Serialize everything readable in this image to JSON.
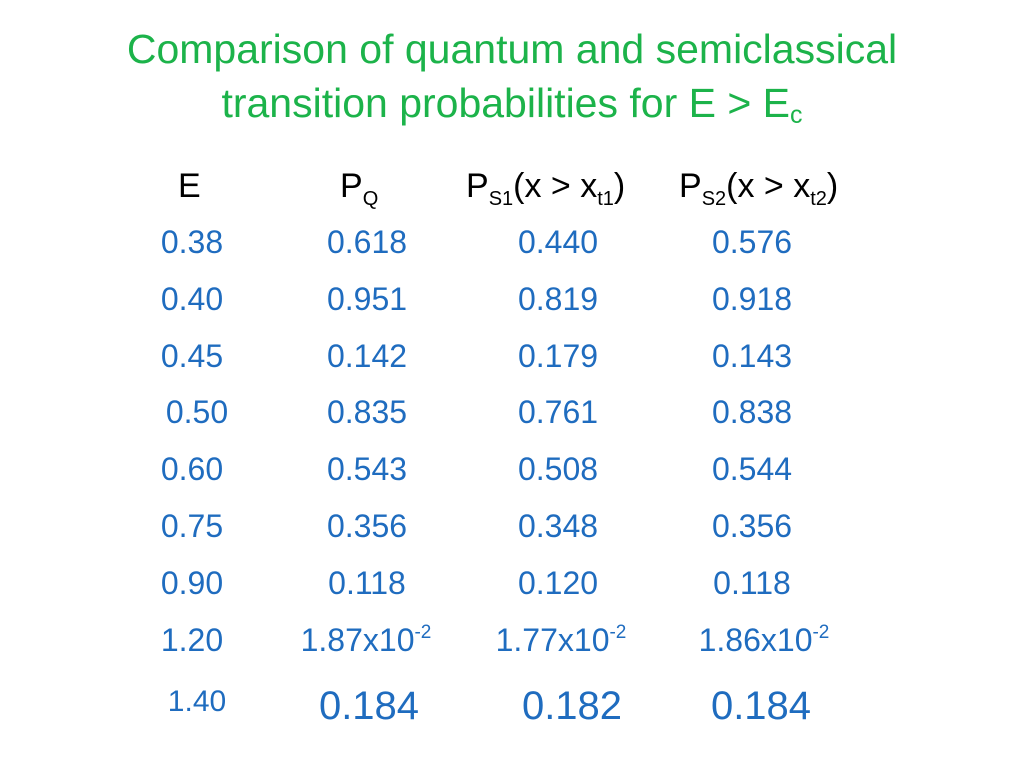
{
  "title": {
    "line1": "Comparison of quantum and semiclassical",
    "line2_main": "transition probabilities for E > E",
    "line2_sub": "c"
  },
  "headers": [
    {
      "main": "E",
      "sub": "",
      "tail": ""
    },
    {
      "main": "P",
      "sub": "Q",
      "tail": ""
    },
    {
      "main": "P",
      "sub": "S1",
      "tail": "(x > x",
      "tail_sub": "t1",
      "close": ")"
    },
    {
      "main": "P",
      "sub": "S2",
      "tail": "(x > x",
      "tail_sub": "t2",
      "close": ")"
    }
  ],
  "rows": [
    [
      "0.38",
      "0.618",
      "0.440",
      "0.576"
    ],
    [
      "0.40",
      "0.951",
      "0.819",
      "0.918"
    ],
    [
      "0.45",
      "0.142",
      "0.179",
      "0.143"
    ],
    [
      "0.50",
      "0.835",
      "0.761",
      "0.838"
    ],
    [
      "0.60",
      "0.543",
      "0.508",
      "0.544"
    ],
    [
      "0.75",
      "0.356",
      "0.348",
      "0.356"
    ],
    [
      "0.90",
      "0.118",
      "0.120",
      "0.118"
    ],
    [
      "1.20",
      "1.87x10",
      "1.77x10",
      "1.86x10"
    ],
    [
      "1.40",
      "0.184",
      "0.182",
      "0.184"
    ]
  ],
  "exponent": "-2",
  "colors": {
    "title": "#1cb34a",
    "values": "#1f6cbf",
    "headers": "#000000"
  }
}
